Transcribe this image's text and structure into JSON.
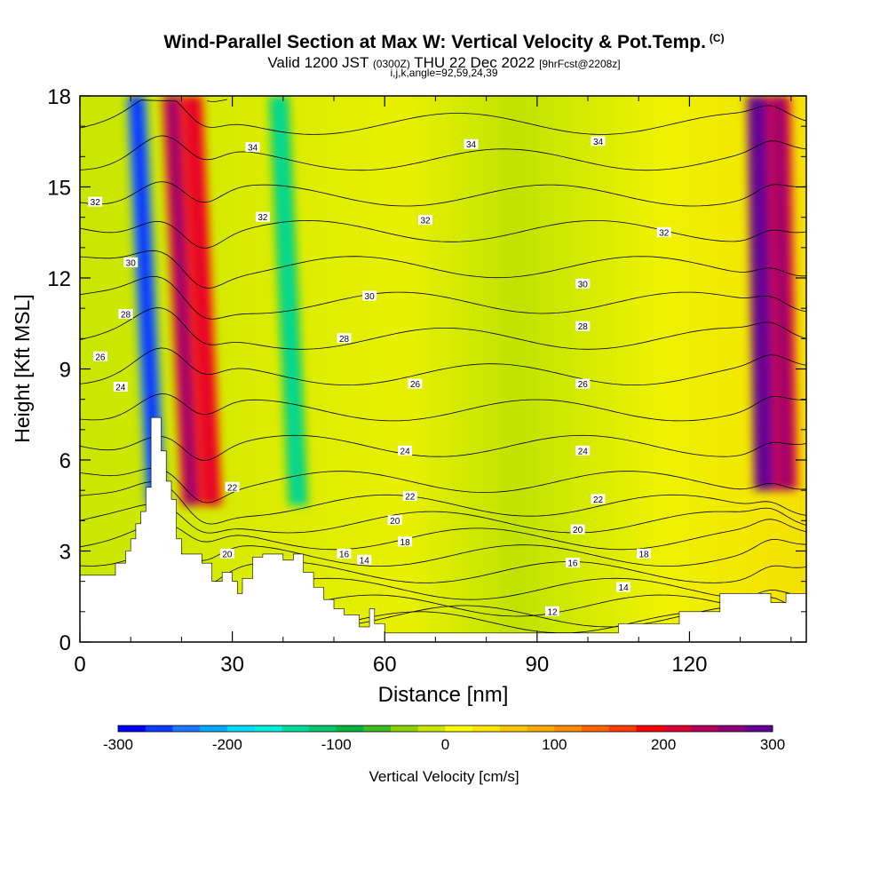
{
  "header": {
    "title": "Wind-Parallel Section at Max W: Vertical Velocity & Pot.Temp.",
    "copyright": "(C)",
    "valid_prefix": "Valid 1200 JST",
    "valid_utc": "(0300Z)",
    "valid_date": "THU 22 Dec 2022",
    "forecast_tag": "[9hrFcst@2208z]",
    "indices": "i,j,k,angle=92,59,24,39"
  },
  "colors": {
    "background_field": "#e4f200",
    "colorbar": [
      "#0000ff",
      "#0a3cff",
      "#1e78ff",
      "#00aaff",
      "#00dcff",
      "#00f0dc",
      "#00dca0",
      "#00c86e",
      "#00b43c",
      "#3cbe1e",
      "#8cd200",
      "#c8e600",
      "#ffff00",
      "#ffe600",
      "#ffc800",
      "#ffaa00",
      "#ff8c00",
      "#ff6400",
      "#ff3c00",
      "#ff0000",
      "#dc0032",
      "#b4005a",
      "#8c0078",
      "#640096"
    ]
  },
  "chart_data": {
    "type": "heatmap",
    "xlabel": "Distance [nm]",
    "ylabel": "Height [Kft MSL]",
    "xlim": [
      0,
      143
    ],
    "ylim": [
      0,
      18
    ],
    "xticks": [
      0,
      30,
      60,
      90,
      120
    ],
    "yticks": [
      0,
      3,
      6,
      9,
      12,
      15,
      18
    ],
    "colorbar": {
      "label": "Vertical Velocity [cm/s]",
      "range": [
        -300,
        300
      ],
      "ticks": [
        -300,
        -200,
        -100,
        0,
        100,
        200,
        300
      ]
    },
    "velocity_features": [
      {
        "x": 15,
        "w": -250
      },
      {
        "x": 22,
        "w": 220
      },
      {
        "x": 26,
        "w": 180
      },
      {
        "x": 43,
        "w": -110
      },
      {
        "x": 135,
        "w": 300
      },
      {
        "x": 139,
        "w": 220
      }
    ],
    "contour_levels": [
      12,
      14,
      16,
      18,
      20,
      22,
      24,
      26,
      28,
      30,
      32,
      34
    ],
    "contour_labels": [
      {
        "text": "34",
        "x": 34,
        "y": 16.3
      },
      {
        "text": "34",
        "x": 77,
        "y": 16.4
      },
      {
        "text": "34",
        "x": 102,
        "y": 16.5
      },
      {
        "text": "32",
        "x": 3,
        "y": 14.5
      },
      {
        "text": "32",
        "x": 36,
        "y": 14.0
      },
      {
        "text": "32",
        "x": 68,
        "y": 13.9
      },
      {
        "text": "32",
        "x": 115,
        "y": 13.5
      },
      {
        "text": "30",
        "x": 10,
        "y": 12.5
      },
      {
        "text": "30",
        "x": 57,
        "y": 11.4
      },
      {
        "text": "30",
        "x": 99,
        "y": 11.8
      },
      {
        "text": "28",
        "x": 9,
        "y": 10.8
      },
      {
        "text": "28",
        "x": 52,
        "y": 10.0
      },
      {
        "text": "28",
        "x": 99,
        "y": 10.4
      },
      {
        "text": "26",
        "x": 4,
        "y": 9.4
      },
      {
        "text": "26",
        "x": 66,
        "y": 8.5
      },
      {
        "text": "26",
        "x": 99,
        "y": 8.5
      },
      {
        "text": "24",
        "x": 8,
        "y": 8.4
      },
      {
        "text": "24",
        "x": 64,
        "y": 6.3
      },
      {
        "text": "24",
        "x": 99,
        "y": 6.3
      },
      {
        "text": "22",
        "x": 30,
        "y": 5.1
      },
      {
        "text": "22",
        "x": 65,
        "y": 4.8
      },
      {
        "text": "22",
        "x": 102,
        "y": 4.7
      },
      {
        "text": "20",
        "x": 62,
        "y": 4.0
      },
      {
        "text": "20",
        "x": 98,
        "y": 3.7
      },
      {
        "text": "20",
        "x": 29,
        "y": 2.9
      },
      {
        "text": "18",
        "x": 64,
        "y": 3.3
      },
      {
        "text": "18",
        "x": 111,
        "y": 2.9
      },
      {
        "text": "16",
        "x": 52,
        "y": 2.9
      },
      {
        "text": "16",
        "x": 97,
        "y": 2.6
      },
      {
        "text": "14",
        "x": 56,
        "y": 2.7
      },
      {
        "text": "14",
        "x": 107,
        "y": 1.8
      },
      {
        "text": "12",
        "x": 93,
        "y": 1.0
      }
    ],
    "terrain": [
      [
        0,
        2.2
      ],
      [
        7,
        2.2
      ],
      [
        7,
        2.6
      ],
      [
        9,
        2.6
      ],
      [
        9,
        3.0
      ],
      [
        10,
        3.0
      ],
      [
        10,
        3.4
      ],
      [
        11,
        3.4
      ],
      [
        11,
        3.9
      ],
      [
        12,
        3.9
      ],
      [
        12,
        4.3
      ],
      [
        13,
        4.3
      ],
      [
        13,
        5.1
      ],
      [
        14,
        5.1
      ],
      [
        14,
        7.4
      ],
      [
        16,
        7.4
      ],
      [
        16,
        6.3
      ],
      [
        17,
        6.3
      ],
      [
        17,
        5.3
      ],
      [
        18,
        5.3
      ],
      [
        18,
        4.7
      ],
      [
        19,
        4.7
      ],
      [
        19,
        3.4
      ],
      [
        20,
        3.4
      ],
      [
        20,
        2.9
      ],
      [
        24,
        2.9
      ],
      [
        24,
        2.6
      ],
      [
        26,
        2.6
      ],
      [
        26,
        2.0
      ],
      [
        28,
        2.0
      ],
      [
        28,
        2.3
      ],
      [
        30,
        2.3
      ],
      [
        30,
        2.0
      ],
      [
        31,
        2.0
      ],
      [
        31,
        1.6
      ],
      [
        32,
        1.6
      ],
      [
        32,
        2.1
      ],
      [
        34,
        2.1
      ],
      [
        34,
        2.8
      ],
      [
        36,
        2.8
      ],
      [
        36,
        2.9
      ],
      [
        40,
        2.9
      ],
      [
        40,
        2.7
      ],
      [
        42,
        2.7
      ],
      [
        42,
        2.9
      ],
      [
        44,
        2.9
      ],
      [
        44,
        2.3
      ],
      [
        46,
        2.3
      ],
      [
        46,
        1.8
      ],
      [
        48,
        1.8
      ],
      [
        48,
        1.4
      ],
      [
        50,
        1.4
      ],
      [
        50,
        1.1
      ],
      [
        52,
        1.1
      ],
      [
        52,
        0.9
      ],
      [
        55,
        0.9
      ],
      [
        55,
        0.5
      ],
      [
        57,
        0.5
      ],
      [
        57,
        1.1
      ],
      [
        58,
        1.1
      ],
      [
        58,
        0.6
      ],
      [
        60,
        0.6
      ],
      [
        60,
        0.3
      ],
      [
        106,
        0.3
      ],
      [
        106,
        0.6
      ],
      [
        118,
        0.6
      ],
      [
        118,
        1.0
      ],
      [
        126,
        1.0
      ],
      [
        126,
        1.6
      ],
      [
        136,
        1.6
      ],
      [
        136,
        1.3
      ],
      [
        139,
        1.3
      ],
      [
        139,
        1.6
      ],
      [
        143,
        1.6
      ],
      [
        143,
        0
      ]
    ]
  }
}
